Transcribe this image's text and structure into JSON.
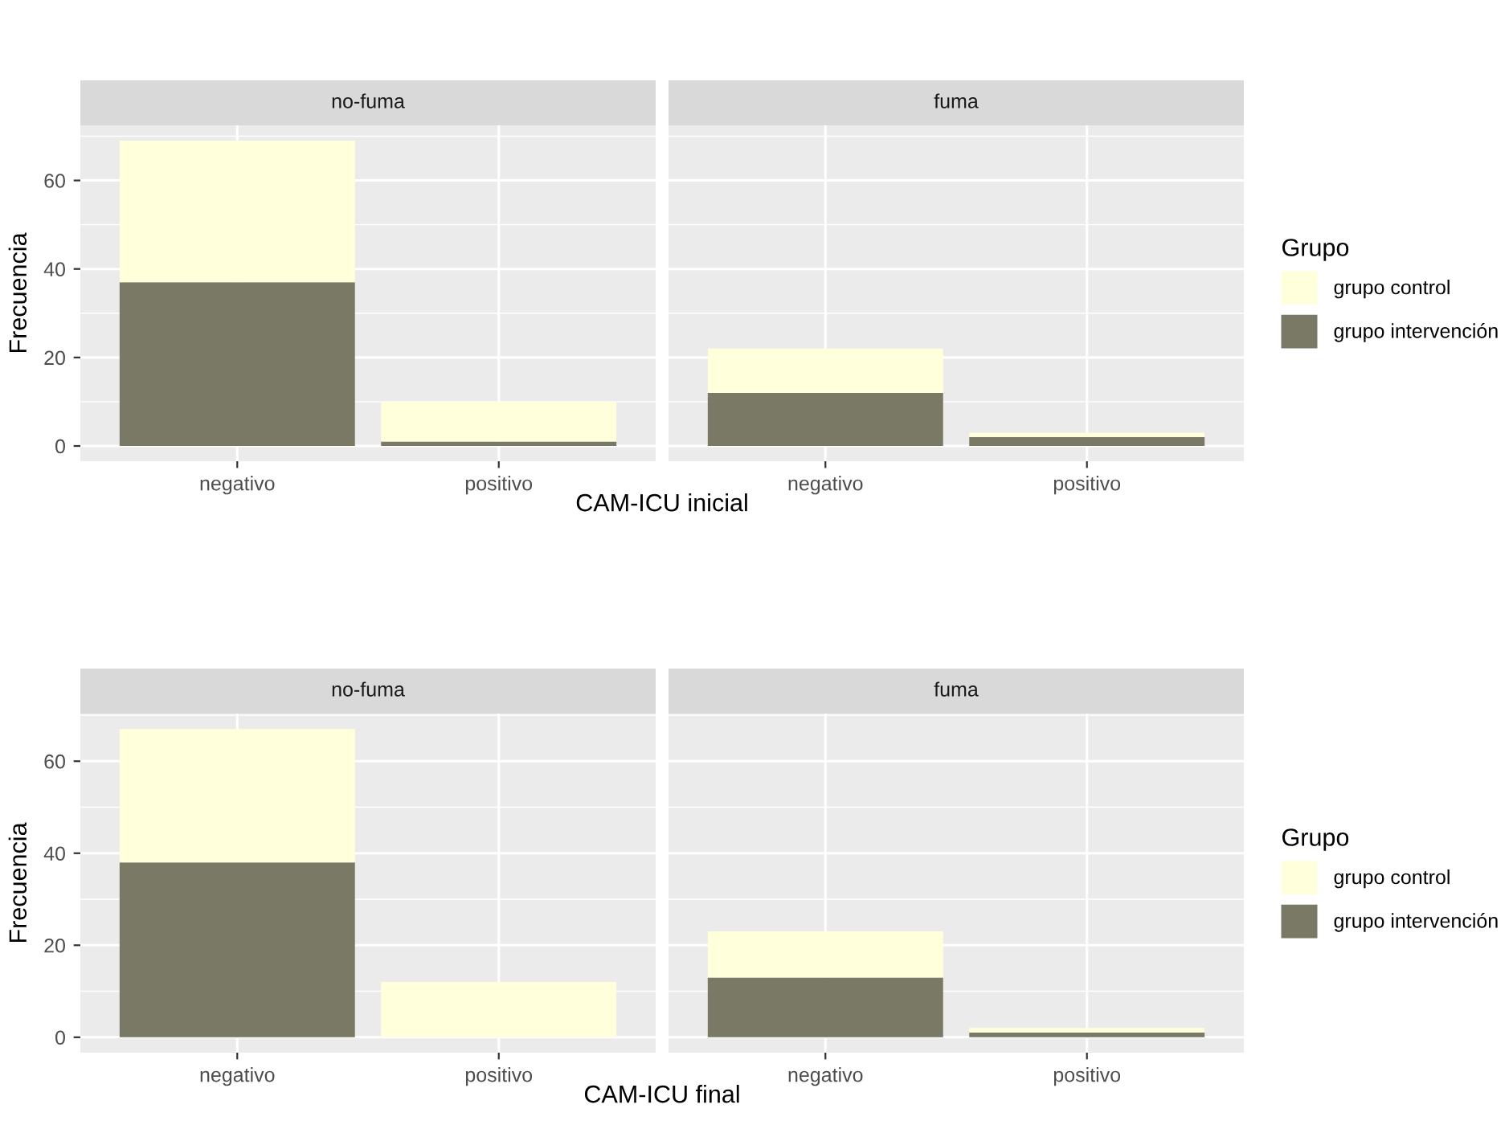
{
  "chart_data": [
    {
      "type": "bar",
      "title": "no-fuma",
      "ylabel": "Frecuencia",
      "xlabel": "CAM-ICU inicial",
      "categories": [
        "negativo",
        "positivo"
      ],
      "stacked": true,
      "ylim": [
        -3.45,
        72.45
      ],
      "yticks": [
        0,
        20,
        40,
        60
      ],
      "grid": true,
      "legend": "right",
      "legend_title": "Grupo",
      "series": [
        {
          "name": "grupo intervención",
          "color": "#797965",
          "values": [
            37,
            1
          ]
        },
        {
          "name": "grupo control",
          "color": "#ffffdb",
          "values": [
            32,
            9
          ]
        }
      ]
    },
    {
      "type": "bar",
      "title": "fuma",
      "categories": [
        "negativo",
        "positivo"
      ],
      "stacked": true,
      "ylim": [
        -3.45,
        72.45
      ],
      "yticks": [
        0,
        20,
        40,
        60
      ],
      "grid": true,
      "tick_labels": "x",
      "series": [
        {
          "color": "#797965",
          "values": [
            12,
            2
          ]
        },
        {
          "color": "#ffffdb",
          "values": [
            10,
            1
          ]
        }
      ]
    },
    {
      "type": "bar",
      "title": "no-fuma",
      "ylabel": "Frecuencia",
      "xlabel": "CAM-ICU final",
      "categories": [
        "negativo",
        "positivo"
      ],
      "stacked": true,
      "ylim": [
        -3.35,
        70.35
      ],
      "yticks": [
        0,
        20,
        40,
        60
      ],
      "grid": true,
      "legend": "right",
      "legend_title": "Grupo",
      "series": [
        {
          "name": "grupo intervención",
          "color": "#797965",
          "values": [
            38,
            0
          ]
        },
        {
          "name": "grupo control",
          "color": "#ffffdb",
          "values": [
            29,
            12
          ]
        }
      ]
    },
    {
      "type": "bar",
      "title": "fuma",
      "categories": [
        "negativo",
        "positivo"
      ],
      "stacked": true,
      "ylim": [
        -3.35,
        70.35
      ],
      "yticks": [
        0,
        20,
        40,
        60
      ],
      "grid": true,
      "tick_labels": "x",
      "series": [
        {
          "color": "#797965",
          "values": [
            13,
            1
          ]
        },
        {
          "color": "#ffffdb",
          "values": [
            10,
            1
          ]
        }
      ]
    }
  ]
}
